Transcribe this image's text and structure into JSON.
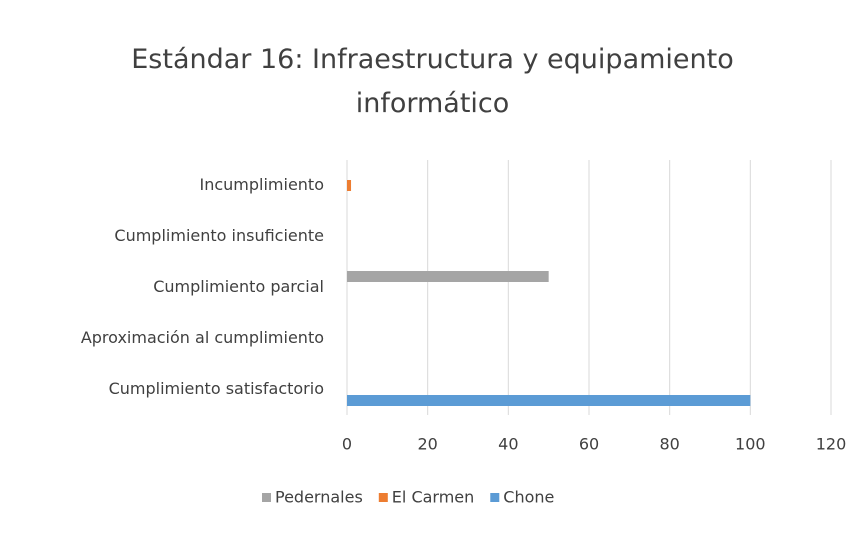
{
  "chart_data": {
    "type": "hbar",
    "title": "Estándar 16: Infraestructura y equipamiento informático",
    "categories": [
      "Incumplimiento",
      "Cumplimiento insuficiente",
      "Cumplimiento parcial",
      "Aproximación al cumplimiento",
      "Cumplimiento satisfactorio"
    ],
    "series": [
      {
        "name": "Pedernales",
        "color": "#a5a5a5",
        "values": [
          0,
          0,
          50,
          0,
          0
        ]
      },
      {
        "name": "El Carmen",
        "color": "#ed7d31",
        "values": [
          1,
          0,
          0,
          0,
          0
        ]
      },
      {
        "name": "Chone",
        "color": "#5b9bd5",
        "values": [
          0,
          0,
          0,
          0,
          100
        ]
      }
    ],
    "xlim": [
      0,
      120
    ],
    "xticks": [
      0,
      20,
      40,
      60,
      80,
      100,
      120
    ],
    "grid": true,
    "legend": "bottom"
  }
}
